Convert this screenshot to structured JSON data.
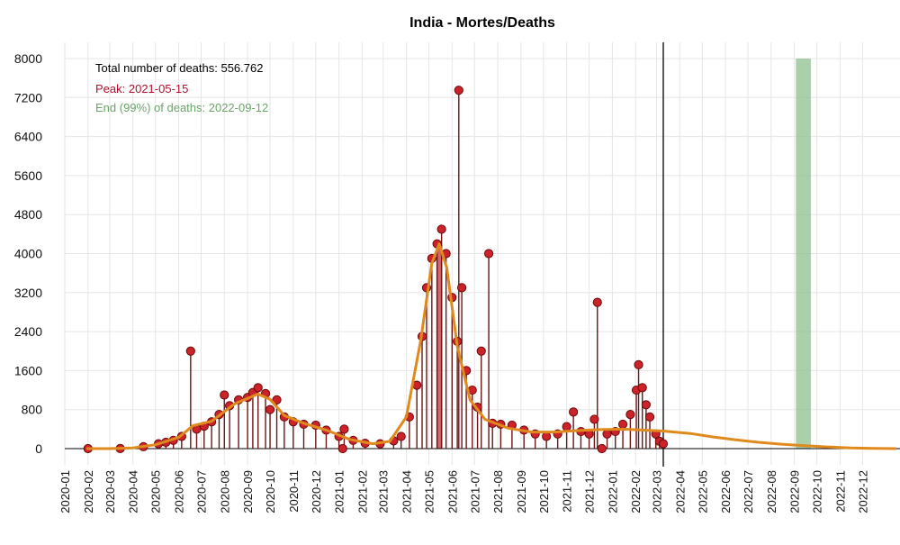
{
  "chart_data": {
    "type": "line",
    "title": "India - Mortes/Deaths",
    "xlabel": "",
    "ylabel": "",
    "ylim": [
      0,
      8000
    ],
    "y_ticks": [
      0,
      800,
      1600,
      2400,
      3200,
      4000,
      4800,
      5600,
      6400,
      7200,
      8000
    ],
    "x_ticks": [
      "2020-01",
      "2020-02",
      "2020-03",
      "2020-04",
      "2020-05",
      "2020-06",
      "2020-07",
      "2020-08",
      "2020-09",
      "2020-10",
      "2020-11",
      "2020-12",
      "2021-01",
      "2021-02",
      "2021-03",
      "2021-04",
      "2021-05",
      "2021-06",
      "2021-07",
      "2021-08",
      "2021-09",
      "2021-10",
      "2021-11",
      "2021-12",
      "2022-01",
      "2022-02",
      "2022-03",
      "2022-04",
      "2022-05",
      "2022-06",
      "2022-07",
      "2022-08",
      "2022-09",
      "2022-10",
      "2022-11",
      "2022-12"
    ],
    "xlim": [
      "2020-01-01",
      "2023-01-20"
    ],
    "grid": true,
    "annotations": {
      "total": "Total number of deaths: 556.762",
      "peak": "Peak: 2021-05-15",
      "end": "End (99%) of deaths: 2022-09-12"
    },
    "colors": {
      "points": "#cc2229",
      "point_stroke": "#6b0a0a",
      "stem": "#6b1515",
      "fit": "#e08a1e",
      "peak_band": "#c8323c",
      "end_band": "#8fbf8f",
      "grid": "#e5e5e5",
      "total_text": "#000000",
      "peak_text": "#b0102a",
      "end_text": "#6aa56a"
    },
    "current_date": "2022-03-10",
    "peak_band": {
      "start": "2021-05-11",
      "end": "2021-05-19",
      "value": 4200
    },
    "end_band": {
      "start": "2022-09-03",
      "end": "2022-09-23"
    },
    "fit_curve": [
      {
        "x": "2020-01-30",
        "y": 0
      },
      {
        "x": "2020-03-01",
        "y": 0
      },
      {
        "x": "2020-04-01",
        "y": 15
      },
      {
        "x": "2020-05-01",
        "y": 80
      },
      {
        "x": "2020-06-01",
        "y": 230
      },
      {
        "x": "2020-06-20",
        "y": 470
      },
      {
        "x": "2020-07-15",
        "y": 560
      },
      {
        "x": "2020-08-15",
        "y": 920
      },
      {
        "x": "2020-09-15",
        "y": 1120
      },
      {
        "x": "2020-10-01",
        "y": 1010
      },
      {
        "x": "2020-10-20",
        "y": 680
      },
      {
        "x": "2020-11-15",
        "y": 520
      },
      {
        "x": "2020-12-15",
        "y": 380
      },
      {
        "x": "2021-01-15",
        "y": 190
      },
      {
        "x": "2021-02-15",
        "y": 100
      },
      {
        "x": "2021-03-10",
        "y": 150
      },
      {
        "x": "2021-04-01",
        "y": 650
      },
      {
        "x": "2021-04-20",
        "y": 2200
      },
      {
        "x": "2021-05-05",
        "y": 3800
      },
      {
        "x": "2021-05-15",
        "y": 4200
      },
      {
        "x": "2021-05-25",
        "y": 3700
      },
      {
        "x": "2021-06-08",
        "y": 2100
      },
      {
        "x": "2021-06-25",
        "y": 1000
      },
      {
        "x": "2021-07-15",
        "y": 600
      },
      {
        "x": "2021-08-15",
        "y": 420
      },
      {
        "x": "2021-09-15",
        "y": 340
      },
      {
        "x": "2021-10-15",
        "y": 340
      },
      {
        "x": "2021-11-15",
        "y": 370
      },
      {
        "x": "2021-12-15",
        "y": 390
      },
      {
        "x": "2022-01-15",
        "y": 400
      },
      {
        "x": "2022-03-10",
        "y": 360
      },
      {
        "x": "2022-04-15",
        "y": 310
      },
      {
        "x": "2022-05-15",
        "y": 240
      },
      {
        "x": "2022-06-15",
        "y": 180
      },
      {
        "x": "2022-07-15",
        "y": 130
      },
      {
        "x": "2022-08-15",
        "y": 90
      },
      {
        "x": "2022-09-15",
        "y": 60
      },
      {
        "x": "2022-10-15",
        "y": 35
      },
      {
        "x": "2022-11-15",
        "y": 15
      },
      {
        "x": "2022-12-15",
        "y": 5
      },
      {
        "x": "2023-01-15",
        "y": 0
      }
    ],
    "series": [
      {
        "values": [
          {
            "x": "2020-02-01",
            "y": 0
          },
          {
            "x": "2020-03-15",
            "y": 2
          },
          {
            "x": "2020-04-15",
            "y": 40
          },
          {
            "x": "2020-05-05",
            "y": 100
          },
          {
            "x": "2020-05-15",
            "y": 130
          },
          {
            "x": "2020-05-25",
            "y": 170
          },
          {
            "x": "2020-06-05",
            "y": 250
          },
          {
            "x": "2020-06-17",
            "y": 2000
          },
          {
            "x": "2020-06-25",
            "y": 400
          },
          {
            "x": "2020-07-05",
            "y": 460
          },
          {
            "x": "2020-07-15",
            "y": 550
          },
          {
            "x": "2020-07-25",
            "y": 700
          },
          {
            "x": "2020-08-01",
            "y": 1100
          },
          {
            "x": "2020-08-08",
            "y": 880
          },
          {
            "x": "2020-08-20",
            "y": 1000
          },
          {
            "x": "2020-09-01",
            "y": 1050
          },
          {
            "x": "2020-09-08",
            "y": 1150
          },
          {
            "x": "2020-09-15",
            "y": 1250
          },
          {
            "x": "2020-09-25",
            "y": 1130
          },
          {
            "x": "2020-10-01",
            "y": 800
          },
          {
            "x": "2020-10-10",
            "y": 1000
          },
          {
            "x": "2020-10-20",
            "y": 650
          },
          {
            "x": "2020-11-01",
            "y": 550
          },
          {
            "x": "2020-11-15",
            "y": 500
          },
          {
            "x": "2020-12-01",
            "y": 480
          },
          {
            "x": "2020-12-15",
            "y": 380
          },
          {
            "x": "2021-01-01",
            "y": 250
          },
          {
            "x": "2021-01-08",
            "y": 400
          },
          {
            "x": "2021-01-06",
            "y": 0
          },
          {
            "x": "2021-01-20",
            "y": 170
          },
          {
            "x": "2021-02-05",
            "y": 110
          },
          {
            "x": "2021-02-25",
            "y": 100
          },
          {
            "x": "2021-03-15",
            "y": 160
          },
          {
            "x": "2021-03-25",
            "y": 250
          },
          {
            "x": "2021-04-05",
            "y": 650
          },
          {
            "x": "2021-04-15",
            "y": 1300
          },
          {
            "x": "2021-04-22",
            "y": 2300
          },
          {
            "x": "2021-04-28",
            "y": 3300
          },
          {
            "x": "2021-05-05",
            "y": 3900
          },
          {
            "x": "2021-05-12",
            "y": 4200
          },
          {
            "x": "2021-05-18",
            "y": 4500
          },
          {
            "x": "2021-05-24",
            "y": 4000
          },
          {
            "x": "2021-06-01",
            "y": 3100
          },
          {
            "x": "2021-06-08",
            "y": 2200
          },
          {
            "x": "2021-06-10",
            "y": 7350
          },
          {
            "x": "2021-06-14",
            "y": 3300
          },
          {
            "x": "2021-06-20",
            "y": 1600
          },
          {
            "x": "2021-06-28",
            "y": 1200
          },
          {
            "x": "2021-07-05",
            "y": 850
          },
          {
            "x": "2021-07-10",
            "y": 2000
          },
          {
            "x": "2021-07-20",
            "y": 4000
          },
          {
            "x": "2021-07-25",
            "y": 520
          },
          {
            "x": "2021-08-05",
            "y": 500
          },
          {
            "x": "2021-08-20",
            "y": 480
          },
          {
            "x": "2021-09-05",
            "y": 380
          },
          {
            "x": "2021-09-20",
            "y": 300
          },
          {
            "x": "2021-10-05",
            "y": 250
          },
          {
            "x": "2021-10-20",
            "y": 300
          },
          {
            "x": "2021-11-01",
            "y": 450
          },
          {
            "x": "2021-11-10",
            "y": 750
          },
          {
            "x": "2021-11-20",
            "y": 350
          },
          {
            "x": "2021-12-01",
            "y": 300
          },
          {
            "x": "2021-12-08",
            "y": 600
          },
          {
            "x": "2021-12-12",
            "y": 3000
          },
          {
            "x": "2021-12-18",
            "y": 0
          },
          {
            "x": "2021-12-25",
            "y": 300
          },
          {
            "x": "2022-01-05",
            "y": 350
          },
          {
            "x": "2022-01-15",
            "y": 500
          },
          {
            "x": "2022-01-25",
            "y": 700
          },
          {
            "x": "2022-02-02",
            "y": 1200
          },
          {
            "x": "2022-02-05",
            "y": 1720
          },
          {
            "x": "2022-02-10",
            "y": 1250
          },
          {
            "x": "2022-02-15",
            "y": 900
          },
          {
            "x": "2022-02-20",
            "y": 650
          },
          {
            "x": "2022-02-28",
            "y": 300
          },
          {
            "x": "2022-03-05",
            "y": 150
          },
          {
            "x": "2022-03-10",
            "y": 100
          }
        ]
      }
    ]
  }
}
